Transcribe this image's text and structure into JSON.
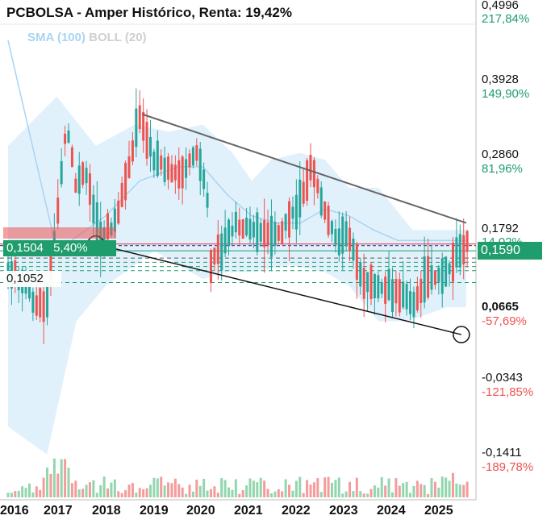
{
  "title": "PCBOLSA - Amper Histórico, Renta: 19,42%",
  "legend": {
    "sma": "SMA (100)",
    "boll": "BOLL (20)"
  },
  "y_ticks": [
    {
      "price": "0,4996",
      "pct": "217,84%",
      "pct_color": "#1f9d6d"
    },
    {
      "price": "0,3928",
      "pct": "149,90%",
      "pct_color": "#1f9d6d"
    },
    {
      "price": "0,2860",
      "pct": "81,96%",
      "pct_color": "#1f9d6d"
    },
    {
      "price": "0,1792",
      "pct": "14,02%",
      "pct_color": "#1f9d6d"
    },
    {
      "price": "0,0665",
      "pct": "-57,69%",
      "pct_color": "#ef5350"
    },
    {
      "price": "-0,0343",
      "pct": "-121,85%",
      "pct_color": "#ef5350"
    },
    {
      "price": "-0,1411",
      "pct": "-189,78%",
      "pct_color": "#ef5350"
    }
  ],
  "current_price": "0,1590",
  "left_labels": {
    "price_green": "0,1504",
    "pct_green": "5,40%",
    "price_white": "0,1052"
  },
  "x_ticks": [
    "2016",
    "2017",
    "2018",
    "2019",
    "2020",
    "2021",
    "2022",
    "2023",
    "2024",
    "2025"
  ],
  "colors": {
    "up": "#26a69a",
    "down": "#ef5350",
    "band": "#dceefb",
    "sma": "#a9d4f2",
    "badge": "#1f9d6d"
  },
  "chart_data": {
    "type": "candlestick",
    "title": "PCBOLSA - Amper Histórico, Renta: 19,42%",
    "legend": [
      "SMA (100)",
      "BOLL (20)"
    ],
    "ylim": [
      -0.19,
      0.5
    ],
    "x_range": [
      2016.0,
      2025.6
    ],
    "price_path": [
      [
        2016.0,
        0.12
      ],
      [
        2016.3,
        0.11
      ],
      [
        2016.6,
        0.07
      ],
      [
        2016.8,
        0.08
      ],
      [
        2017.0,
        0.2
      ],
      [
        2017.2,
        0.33
      ],
      [
        2017.4,
        0.24
      ],
      [
        2017.6,
        0.26
      ],
      [
        2017.9,
        0.17
      ],
      [
        2018.2,
        0.19
      ],
      [
        2018.5,
        0.28
      ],
      [
        2018.7,
        0.34
      ],
      [
        2019.0,
        0.28
      ],
      [
        2019.5,
        0.26
      ],
      [
        2019.9,
        0.29
      ],
      [
        2020.1,
        0.22
      ],
      [
        2020.15,
        0.13
      ],
      [
        2020.4,
        0.16
      ],
      [
        2020.7,
        0.19
      ],
      [
        2021.0,
        0.18
      ],
      [
        2021.5,
        0.17
      ],
      [
        2022.0,
        0.22
      ],
      [
        2022.2,
        0.27
      ],
      [
        2022.4,
        0.23
      ],
      [
        2022.7,
        0.17
      ],
      [
        2023.0,
        0.17
      ],
      [
        2023.25,
        0.11
      ],
      [
        2023.6,
        0.1
      ],
      [
        2024.0,
        0.09
      ],
      [
        2024.3,
        0.07
      ],
      [
        2024.6,
        0.12
      ],
      [
        2024.9,
        0.11
      ],
      [
        2025.1,
        0.13
      ],
      [
        2025.4,
        0.159
      ]
    ],
    "sma_path": [
      [
        2016.0,
        0.45
      ],
      [
        2016.5,
        0.3
      ],
      [
        2017.0,
        0.15
      ],
      [
        2018.0,
        0.2
      ],
      [
        2018.7,
        0.25
      ],
      [
        2019.5,
        0.27
      ],
      [
        2020.0,
        0.27
      ],
      [
        2020.5,
        0.23
      ],
      [
        2021.0,
        0.2
      ],
      [
        2021.5,
        0.19
      ],
      [
        2022.0,
        0.19
      ],
      [
        2022.5,
        0.21
      ],
      [
        2023.0,
        0.2
      ],
      [
        2023.5,
        0.18
      ],
      [
        2024.0,
        0.165
      ],
      [
        2025.4,
        0.165
      ]
    ],
    "band_upper": [
      [
        2016.0,
        0.3
      ],
      [
        2017.0,
        0.37
      ],
      [
        2017.8,
        0.3
      ],
      [
        2018.6,
        0.33
      ],
      [
        2019.3,
        0.32
      ],
      [
        2020.0,
        0.33
      ],
      [
        2020.6,
        0.29
      ],
      [
        2021.0,
        0.25
      ],
      [
        2021.4,
        0.28
      ],
      [
        2022.0,
        0.29
      ],
      [
        2022.5,
        0.28
      ],
      [
        2023.0,
        0.24
      ],
      [
        2023.6,
        0.24
      ],
      [
        2024.3,
        0.18
      ],
      [
        2025.4,
        0.18
      ]
    ],
    "band_lower": [
      [
        2016.0,
        -0.1
      ],
      [
        2016.8,
        -0.14
      ],
      [
        2017.4,
        0.05
      ],
      [
        2018.0,
        0.1
      ],
      [
        2019.0,
        0.15
      ],
      [
        2020.0,
        0.11
      ],
      [
        2020.5,
        0.12
      ],
      [
        2021.0,
        0.12
      ],
      [
        2021.8,
        0.13
      ],
      [
        2022.5,
        0.12
      ],
      [
        2023.0,
        0.1
      ],
      [
        2023.6,
        0.05
      ],
      [
        2024.2,
        0.05
      ],
      [
        2025.0,
        0.07
      ],
      [
        2025.4,
        0.07
      ]
    ],
    "trendline_upper": {
      "from": [
        2018.75,
        0.345
      ],
      "to": [
        2025.4,
        0.19
      ]
    },
    "trendline_lower": {
      "from": [
        2017.8,
        0.16
      ],
      "to": [
        2025.3,
        0.031
      ]
    },
    "horizontal_levels": [
      0.159,
      0.1504,
      0.14,
      0.134,
      0.128,
      0.122,
      0.1052
    ]
  }
}
